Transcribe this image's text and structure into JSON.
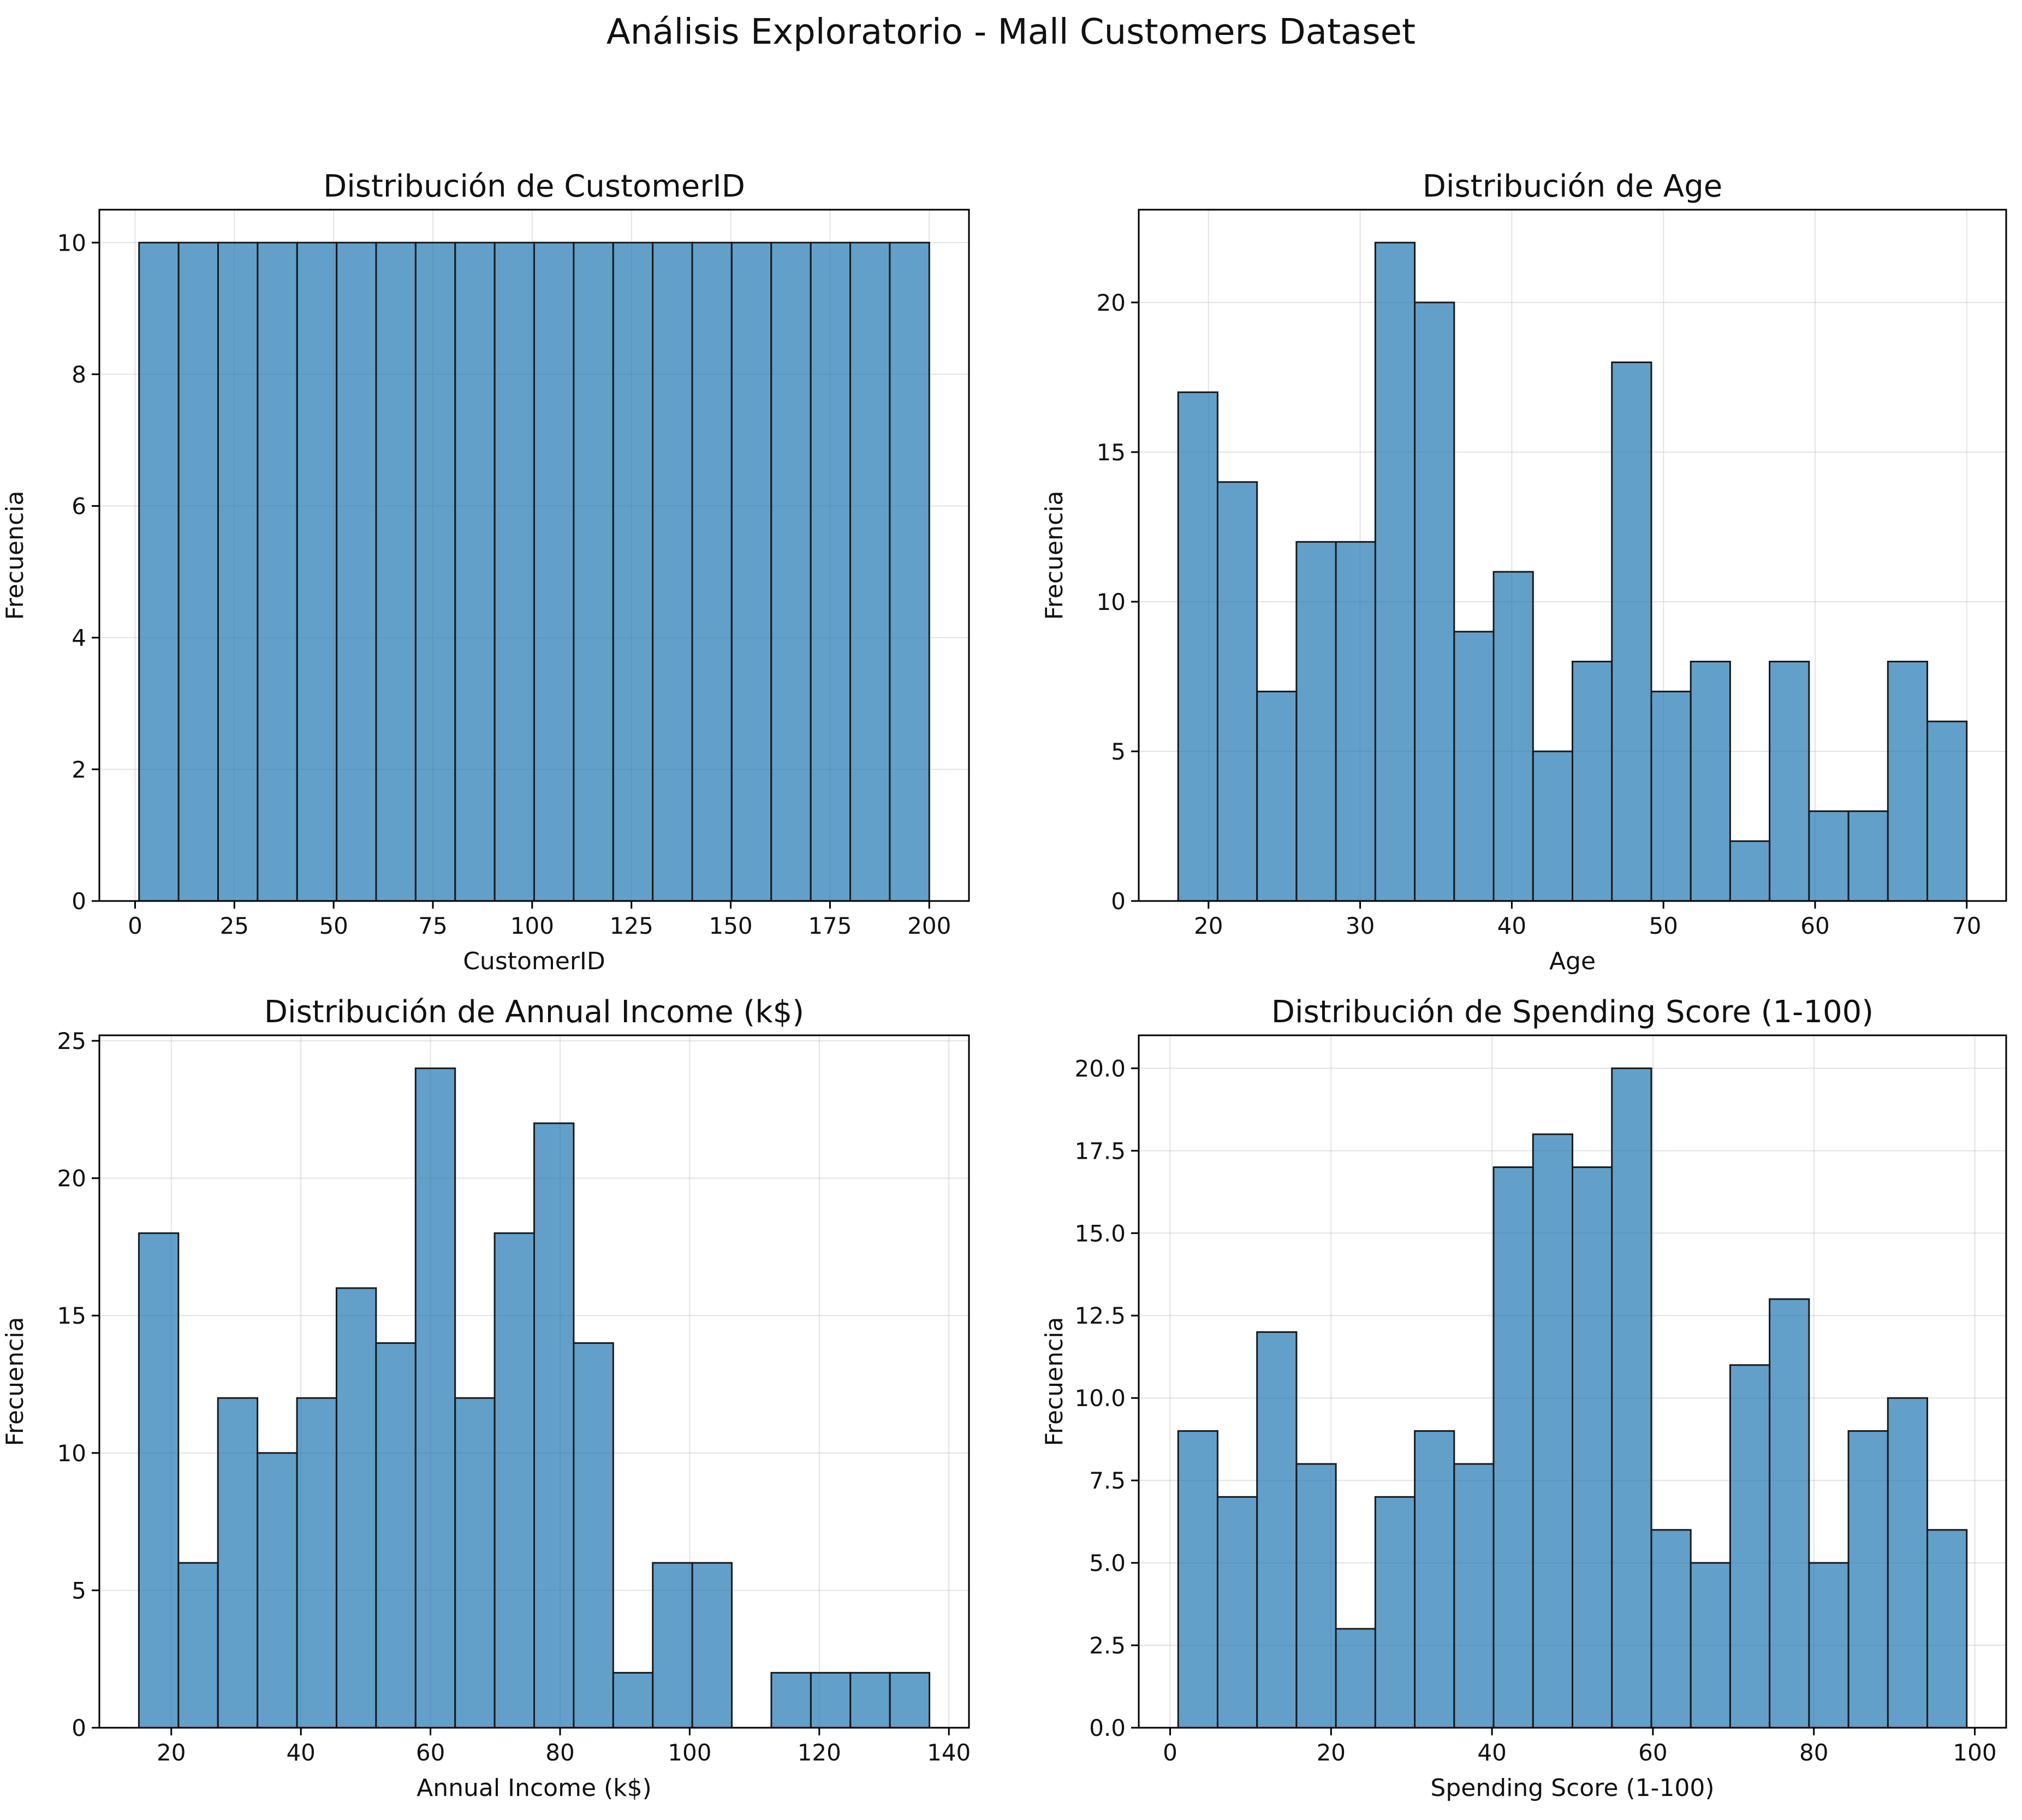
{
  "figure": {
    "title": "Análisis Exploratorio - Mall Customers Dataset"
  },
  "colors": {
    "bar_fill": "#1f77b4",
    "bar_edge": "#1a1a1a",
    "grid": "#b0b0b0"
  },
  "chart_data": [
    {
      "type": "bar",
      "title": "Distribución de CustomerID",
      "xlabel": "CustomerID",
      "ylabel": "Frecuencia",
      "grid": true,
      "xlim": [
        -9,
        210
      ],
      "ylim": [
        0,
        10.5
      ],
      "bin_start": 1,
      "bin_width": 9.95,
      "values": [
        10,
        10,
        10,
        10,
        10,
        10,
        10,
        10,
        10,
        10,
        10,
        10,
        10,
        10,
        10,
        10,
        10,
        10,
        10,
        10
      ],
      "xticks": [
        0,
        25,
        50,
        75,
        100,
        125,
        150,
        175,
        200
      ],
      "yticks": [
        0,
        2,
        4,
        6,
        8,
        10
      ],
      "ytick_labels": [
        "0",
        "2",
        "4",
        "6",
        "8",
        "10"
      ]
    },
    {
      "type": "bar",
      "title": "Distribución de Age",
      "xlabel": "Age",
      "ylabel": "Frecuencia",
      "grid": true,
      "xlim": [
        15.4,
        72.6
      ],
      "ylim": [
        0,
        23.1
      ],
      "bin_start": 18,
      "bin_width": 2.6,
      "values": [
        17,
        14,
        7,
        12,
        12,
        22,
        20,
        9,
        11,
        5,
        8,
        18,
        7,
        8,
        2,
        8,
        3,
        3,
        8,
        6
      ],
      "xticks": [
        20,
        30,
        40,
        50,
        60,
        70
      ],
      "yticks": [
        0,
        5,
        10,
        15,
        20
      ],
      "ytick_labels": [
        "0",
        "5",
        "10",
        "15",
        "20"
      ]
    },
    {
      "type": "bar",
      "title": "Distribución de Annual Income (k$)",
      "xlabel": "Annual Income (k$)",
      "ylabel": "Frecuencia",
      "grid": true,
      "xlim": [
        8.9,
        143.1
      ],
      "ylim": [
        0,
        25.2
      ],
      "bin_start": 15,
      "bin_width": 6.1,
      "values": [
        18,
        6,
        12,
        10,
        12,
        16,
        14,
        24,
        12,
        18,
        22,
        14,
        2,
        6,
        6,
        0,
        2,
        2,
        2,
        2
      ],
      "xticks": [
        20,
        40,
        60,
        80,
        100,
        120,
        140
      ],
      "yticks": [
        0,
        5,
        10,
        15,
        20,
        25
      ],
      "ytick_labels": [
        "0",
        "5",
        "10",
        "15",
        "20",
        "25"
      ]
    },
    {
      "type": "bar",
      "title": "Distribución de Spending Score (1-100)",
      "xlabel": "Spending Score (1-100)",
      "ylabel": "Frecuencia",
      "grid": true,
      "xlim": [
        -3.9,
        103.9
      ],
      "ylim": [
        0,
        21
      ],
      "bin_start": 1,
      "bin_width": 4.9,
      "values": [
        9,
        7,
        12,
        8,
        3,
        7,
        9,
        8,
        17,
        18,
        17,
        20,
        6,
        5,
        11,
        13,
        5,
        9,
        10,
        6
      ],
      "xticks": [
        0,
        20,
        40,
        60,
        80,
        100
      ],
      "yticks": [
        0,
        2.5,
        5,
        7.5,
        10,
        12.5,
        15,
        17.5,
        20
      ],
      "ytick_labels": [
        "0.0",
        "2.5",
        "5.0",
        "7.5",
        "10.0",
        "12.5",
        "15.0",
        "17.5",
        "20.0"
      ]
    }
  ]
}
